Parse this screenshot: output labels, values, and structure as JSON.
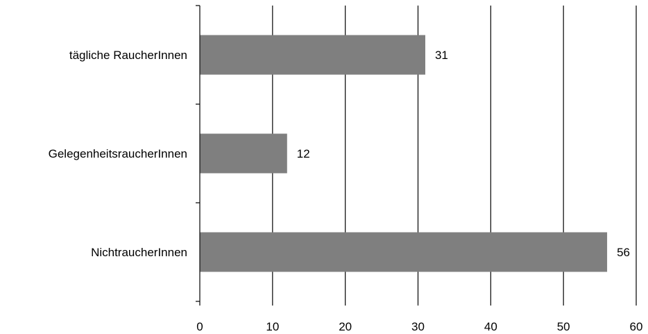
{
  "chart_data": {
    "type": "bar",
    "orientation": "horizontal",
    "title": "",
    "xlabel": "",
    "ylabel": "",
    "categories": [
      "tägliche RaucherInnen",
      "GelegenheitsraucherInnen",
      "NichtraucherInnen"
    ],
    "values": [
      31,
      12,
      56
    ],
    "data_labels": [
      "31",
      "12",
      "56"
    ],
    "xlim": [
      0,
      60
    ],
    "x_ticks": [
      0,
      10,
      20,
      30,
      40,
      50,
      60
    ],
    "x_tick_labels": [
      "0",
      "10",
      "20",
      "30",
      "40",
      "50",
      "60"
    ],
    "grid": "vertical",
    "legend": "none",
    "bar_color": "#7f7f7f",
    "axis_color": "#000000"
  }
}
